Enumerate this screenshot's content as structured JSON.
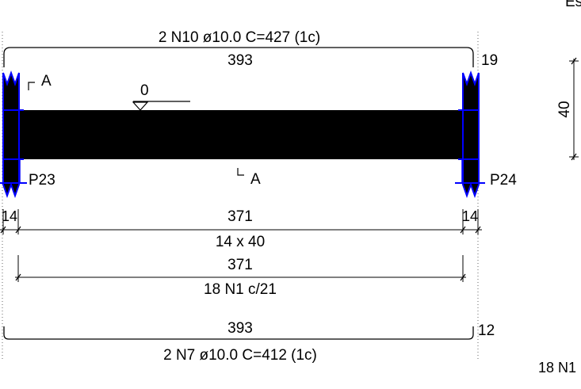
{
  "top_rebar": {
    "title": "2 N10 ø10.0 C=427  (1c)",
    "length": "393",
    "hook": "19"
  },
  "section_marks": {
    "top": "A",
    "bottom": "A"
  },
  "level_label": "0",
  "supports": {
    "left": "P23",
    "right": "P24"
  },
  "span_dims": {
    "left_support": "14",
    "clear_span": "371",
    "right_support": "14",
    "section_size": "14 x 40"
  },
  "stirrups": {
    "span": "371",
    "label": "18 N1 c/21"
  },
  "bottom_rebar": {
    "length": "393",
    "hook": "12",
    "title": "2 N7 ø10.0 C=412  (1c)"
  },
  "right_panel": {
    "height_dim": "40",
    "corner_text": "Es",
    "stirrup_label": "18 N1"
  },
  "colors": {
    "beam": "#000000",
    "support_outline": "#0000ff",
    "line": "#000000"
  }
}
